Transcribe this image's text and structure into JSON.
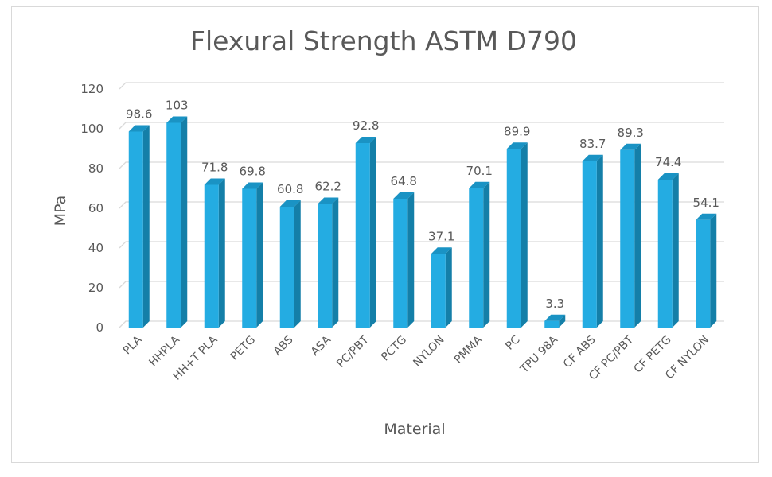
{
  "chart_data": {
    "type": "bar",
    "title": "Flexural Strength ASTM D790",
    "xlabel": "Material",
    "ylabel": "MPa",
    "ylim": [
      0,
      120
    ],
    "yticks": [
      0,
      20,
      40,
      60,
      80,
      100,
      120
    ],
    "grid": true,
    "categories": [
      "PLA",
      "HHPLA",
      "HH+T PLA",
      "PETG",
      "ABS",
      "ASA",
      "PC/PBT",
      "PCTG",
      "NYLON",
      "PMMA",
      "PC",
      "TPU 98A",
      "CF ABS",
      "CF PC/PBT",
      "CF PETG",
      "CF NYLON"
    ],
    "values": [
      98.6,
      103,
      71.8,
      69.8,
      60.8,
      62.2,
      92.8,
      64.8,
      37.1,
      70.1,
      89.9,
      3.3,
      83.7,
      89.3,
      74.4,
      54.1
    ],
    "data_labels": [
      "98.6",
      "103",
      "71.8",
      "69.8",
      "60.8",
      "62.2",
      "92.8",
      "64.8",
      "37.1",
      "70.1",
      "89.9",
      "3.3",
      "83.7",
      "89.3",
      "74.4",
      "54.1"
    ],
    "colors": {
      "bar_front": "#24ace2",
      "bar_side": "#147fa8",
      "bar_top": "#1a93c4",
      "grid": "#d9d9d9",
      "text": "#595959"
    }
  }
}
